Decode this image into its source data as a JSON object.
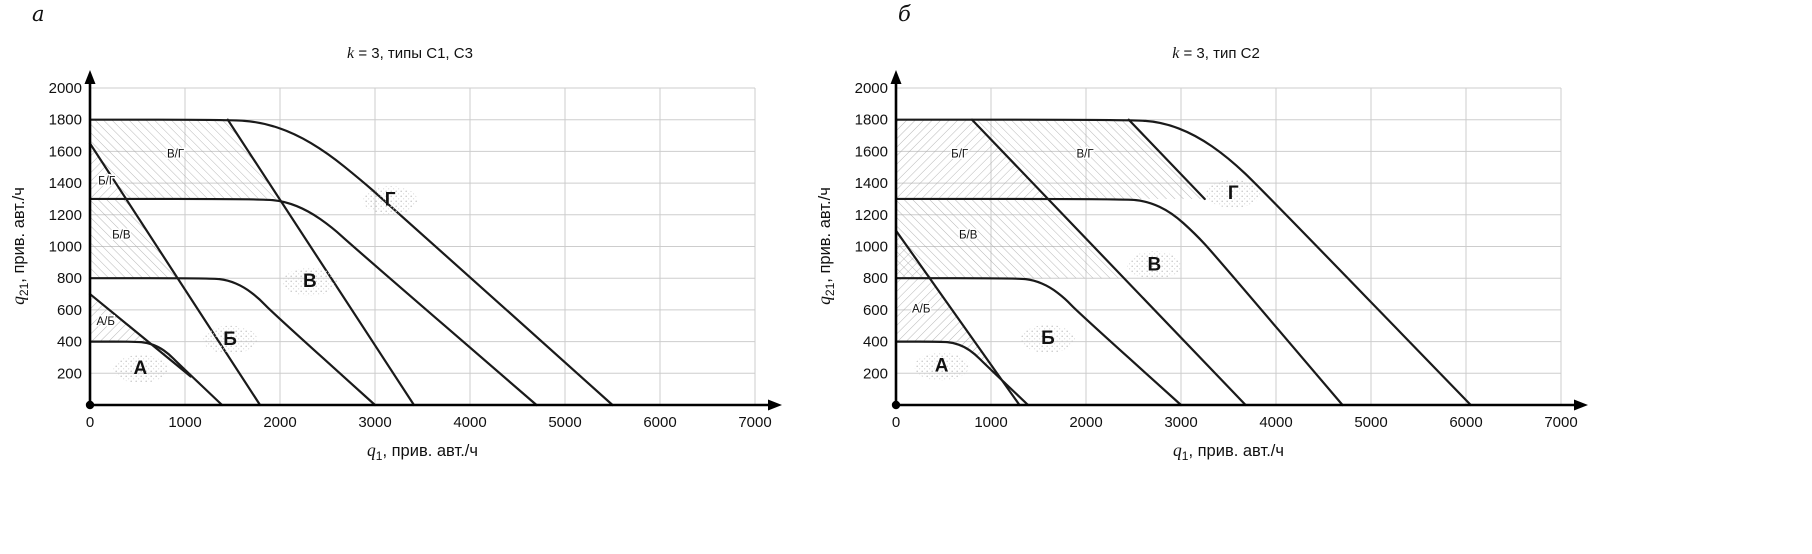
{
  "panels": [
    {
      "letter": "а"
    },
    {
      "letter": "б"
    }
  ],
  "chart_data": [
    {
      "type": "line",
      "title": {
        "var": "k",
        "rest": " = 3, типы С1, С3"
      },
      "xlabel": {
        "var": "q",
        "sub": "1",
        "rest": ", прив. авт./ч"
      },
      "ylabel": {
        "var": "q",
        "sub": "21",
        "rest": ", прив. авт./ч"
      },
      "xlim": [
        0,
        7000
      ],
      "ylim": [
        0,
        2000
      ],
      "x_ticks": [
        0,
        1000,
        2000,
        3000,
        4000,
        5000,
        6000,
        7000
      ],
      "y_ticks": [
        200,
        400,
        600,
        800,
        1000,
        1200,
        1400,
        1600,
        1800,
        2000
      ],
      "grid": true,
      "line_color": "#1a1a1a",
      "grid_color": "#cdcdcd",
      "hatch_color": "#a6a6a6",
      "series": [
        {
          "name": "boundary-zone-A",
          "smooth": true,
          "points": [
            [
              0,
              400
            ],
            [
              480,
              400
            ],
            [
              600,
              393
            ],
            [
              720,
              368
            ],
            [
              830,
              322
            ],
            [
              930,
              262
            ],
            [
              1390,
              0
            ]
          ]
        },
        {
          "name": "boundary-zone-B",
          "smooth": true,
          "points": [
            [
              0,
              800
            ],
            [
              1280,
              800
            ],
            [
              1450,
              788
            ],
            [
              1620,
              745
            ],
            [
              1780,
              672
            ],
            [
              1900,
              595
            ],
            [
              3000,
              0
            ]
          ]
        },
        {
          "name": "boundary-zone-V",
          "smooth": true,
          "points": [
            [
              0,
              1300
            ],
            [
              1800,
              1300
            ],
            [
              2050,
              1285
            ],
            [
              2300,
              1225
            ],
            [
              2550,
              1120
            ],
            [
              2750,
              1010
            ],
            [
              4700,
              0
            ]
          ]
        },
        {
          "name": "boundary-zone-G",
          "smooth": true,
          "points": [
            [
              0,
              1800
            ],
            [
              1450,
              1800
            ],
            [
              1800,
              1785
            ],
            [
              2150,
              1715
            ],
            [
              2500,
              1590
            ],
            [
              2850,
              1420
            ],
            [
              3100,
              1290
            ],
            [
              5500,
              0
            ]
          ]
        },
        {
          "name": "transition-line-AB",
          "smooth": false,
          "points": [
            [
              0,
              700
            ],
            [
              1060,
              180
            ]
          ]
        },
        {
          "name": "transition-line-left",
          "smooth": false,
          "points": [
            [
              0,
              1650
            ],
            [
              1790,
              0
            ]
          ]
        },
        {
          "name": "transition-line-right",
          "smooth": false,
          "points": [
            [
              1450,
              1800
            ],
            [
              3410,
              0
            ]
          ]
        }
      ],
      "bands": [
        {
          "label": "А/Б",
          "hatch": "ne",
          "label_pos": [
            165,
            505
          ],
          "polygon": [
            [
              0,
              400
            ],
            [
              0,
              700
            ],
            [
              1060,
              180
            ],
            [
              930,
              262
            ],
            [
              830,
              322
            ],
            [
              720,
              368
            ],
            [
              600,
              393
            ],
            [
              480,
              400
            ]
          ]
        },
        {
          "label": "Б/В",
          "hatch": "nw",
          "label_pos": [
            330,
            1050
          ],
          "polygon": [
            [
              0,
              800
            ],
            [
              0,
              1300
            ],
            [
              380,
              1300
            ],
            [
              922,
              800
            ]
          ]
        },
        {
          "label": "Б/Г",
          "hatch": "ne",
          "label_pos": [
            175,
            1390
          ],
          "polygon": [
            [
              0,
              1300
            ],
            [
              0,
              1650
            ],
            [
              380,
              1300
            ]
          ]
        },
        {
          "label": "В/Г",
          "hatch": "nw",
          "label_pos": [
            900,
            1560
          ],
          "polygon": [
            [
              0,
              1650
            ],
            [
              0,
              1800
            ],
            [
              1450,
              1800
            ],
            [
              1995,
              1300
            ],
            [
              380,
              1300
            ]
          ]
        }
      ],
      "zone_labels": [
        {
          "text": "А",
          "pos": [
            530,
            195
          ]
        },
        {
          "text": "Б",
          "pos": [
            1475,
            380
          ]
        },
        {
          "text": "В",
          "pos": [
            2315,
            745
          ]
        },
        {
          "text": "Г",
          "pos": [
            3160,
            1260
          ]
        }
      ]
    },
    {
      "type": "line",
      "title": {
        "var": "k",
        "rest": " = 3, тип С2"
      },
      "xlabel": {
        "var": "q",
        "sub": "1",
        "rest": ", прив. авт./ч"
      },
      "ylabel": {
        "var": "q",
        "sub": "21",
        "rest": ", прив. авт./ч"
      },
      "xlim": [
        0,
        7000
      ],
      "ylim": [
        0,
        2000
      ],
      "x_ticks": [
        0,
        1000,
        2000,
        3000,
        4000,
        5000,
        6000,
        7000
      ],
      "y_ticks": [
        200,
        400,
        600,
        800,
        1000,
        1200,
        1400,
        1600,
        1800,
        2000
      ],
      "grid": true,
      "line_color": "#1a1a1a",
      "grid_color": "#cdcdcd",
      "hatch_color": "#a6a6a6",
      "series": [
        {
          "name": "boundary-zone-A",
          "smooth": true,
          "points": [
            [
              0,
              400
            ],
            [
              480,
              400
            ],
            [
              600,
              393
            ],
            [
              720,
              368
            ],
            [
              830,
              322
            ],
            [
              930,
              262
            ],
            [
              1390,
              0
            ]
          ]
        },
        {
          "name": "boundary-zone-B",
          "smooth": true,
          "points": [
            [
              0,
              800
            ],
            [
              1280,
              800
            ],
            [
              1450,
              788
            ],
            [
              1620,
              745
            ],
            [
              1780,
              672
            ],
            [
              1900,
              595
            ],
            [
              3000,
              0
            ]
          ]
        },
        {
          "name": "boundary-zone-V",
          "smooth": true,
          "points": [
            [
              0,
              1300
            ],
            [
              2400,
              1300
            ],
            [
              2650,
              1285
            ],
            [
              2900,
              1215
            ],
            [
              3150,
              1080
            ],
            [
              3350,
              950
            ],
            [
              4700,
              0
            ]
          ]
        },
        {
          "name": "boundary-zone-G",
          "smooth": true,
          "points": [
            [
              0,
              1800
            ],
            [
              2450,
              1800
            ],
            [
              2800,
              1785
            ],
            [
              3150,
              1705
            ],
            [
              3500,
              1560
            ],
            [
              3850,
              1360
            ],
            [
              6050,
              0
            ]
          ]
        },
        {
          "name": "transition-line-AB",
          "smooth": false,
          "points": [
            [
              0,
              1100
            ],
            [
              1300,
              0
            ]
          ]
        },
        {
          "name": "transition-line-left",
          "smooth": false,
          "points": [
            [
              800,
              1800
            ],
            [
              3680,
              0
            ]
          ]
        },
        {
          "name": "transition-line-right",
          "smooth": false,
          "points": [
            [
              2450,
              1800
            ],
            [
              3250,
              1300
            ]
          ]
        }
      ],
      "bands": [
        {
          "label": "А/Б",
          "hatch": "ne",
          "label_pos": [
            265,
            585
          ],
          "polygon": [
            [
              0,
              400
            ],
            [
              0,
              1100
            ],
            [
              1124,
              149
            ],
            [
              930,
              262
            ],
            [
              830,
              322
            ],
            [
              720,
              368
            ],
            [
              600,
              393
            ],
            [
              480,
              400
            ]
          ]
        },
        {
          "label": "Б/В",
          "hatch": "nw",
          "label_pos": [
            760,
            1050
          ],
          "polygon": [
            [
              0,
              800
            ],
            [
              0,
              1300
            ],
            [
              1600,
              1300
            ],
            [
              2400,
              800
            ]
          ]
        },
        {
          "label": "Б/Г",
          "hatch": "ne",
          "label_pos": [
            670,
            1560
          ],
          "polygon": [
            [
              0,
              1300
            ],
            [
              0,
              1800
            ],
            [
              800,
              1800
            ],
            [
              1600,
              1300
            ]
          ]
        },
        {
          "label": "В/Г",
          "hatch": "nw",
          "label_pos": [
            1990,
            1560
          ],
          "polygon": [
            [
              800,
              1800
            ],
            [
              2450,
              1800
            ],
            [
              3250,
              1300
            ],
            [
              1600,
              1300
            ]
          ]
        }
      ],
      "zone_labels": [
        {
          "text": "А",
          "pos": [
            480,
            210
          ]
        },
        {
          "text": "Б",
          "pos": [
            1600,
            385
          ]
        },
        {
          "text": "В",
          "pos": [
            2720,
            850
          ]
        },
        {
          "text": "Г",
          "pos": [
            3550,
            1300
          ]
        }
      ]
    }
  ]
}
